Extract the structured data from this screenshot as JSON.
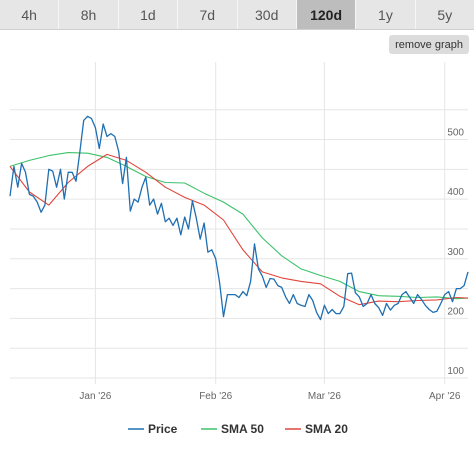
{
  "timeframes": [
    {
      "label": "4h",
      "active": false
    },
    {
      "label": "8h",
      "active": false
    },
    {
      "label": "1d",
      "active": false
    },
    {
      "label": "7d",
      "active": false
    },
    {
      "label": "30d",
      "active": false
    },
    {
      "label": "120d",
      "active": true
    },
    {
      "label": "1y",
      "active": false
    },
    {
      "label": "5y",
      "active": false
    }
  ],
  "remove_graph_label": "remove graph",
  "colors": {
    "price": "#1f6fb2",
    "sma50": "#3cc26a",
    "sma20": "#e0463c",
    "grid": "#e6e6e6"
  },
  "chart_data": {
    "type": "line",
    "y_range": [
      90,
      630
    ],
    "x_range": [
      0,
      118
    ],
    "y_ticks": [
      {
        "value": 100,
        "label": "100"
      },
      {
        "value": 200,
        "label": "200"
      },
      {
        "value": 300,
        "label": "300"
      },
      {
        "value": 400,
        "label": "400"
      },
      {
        "value": 500,
        "label": "500"
      }
    ],
    "x_ticks": [
      {
        "value": 22,
        "label": "Jan '26"
      },
      {
        "value": 53,
        "label": "Feb '26"
      },
      {
        "value": 81,
        "label": "Mar '26"
      },
      {
        "value": 112,
        "label": "Apr '26"
      }
    ],
    "grid": true,
    "legend_position": "bottom",
    "series": [
      {
        "name": "Price",
        "color": "#1f6fb2",
        "x": [
          0,
          1,
          2,
          3,
          4,
          5,
          6,
          7,
          8,
          9,
          10,
          11,
          12,
          13,
          14,
          15,
          16,
          17,
          18,
          19,
          20,
          21,
          22,
          23,
          24,
          25,
          26,
          27,
          28,
          29,
          30,
          31,
          32,
          33,
          34,
          35,
          36,
          37,
          38,
          39,
          40,
          41,
          42,
          43,
          44,
          45,
          46,
          47,
          48,
          49,
          50,
          51,
          52,
          53,
          54,
          55,
          56,
          57,
          58,
          59,
          60,
          61,
          62,
          63,
          64,
          65,
          66,
          67,
          68,
          69,
          70,
          71,
          72,
          73,
          74,
          75,
          76,
          77,
          78,
          79,
          80,
          81,
          82,
          83,
          84,
          85,
          86,
          87,
          88,
          89,
          90,
          91,
          92,
          93,
          94,
          95,
          96,
          97,
          98,
          99,
          100,
          101,
          102,
          103,
          104,
          105,
          106,
          107,
          108,
          109,
          110,
          111,
          112,
          113,
          114,
          115,
          116,
          117,
          118
        ],
        "values": [
          405,
          455,
          420,
          460,
          445,
          408,
          405,
          395,
          378,
          390,
          450,
          447,
          420,
          450,
          400,
          445,
          445,
          430,
          480,
          532,
          539,
          535,
          520,
          485,
          526,
          505,
          510,
          505,
          480,
          426,
          470,
          380,
          400,
          395,
          420,
          437,
          390,
          400,
          375,
          393,
          362,
          368,
          356,
          368,
          340,
          370,
          350,
          397,
          368,
          333,
          360,
          311,
          315,
          300,
          260,
          203,
          240,
          240,
          240,
          235,
          245,
          238,
          262,
          325,
          283,
          271,
          252,
          267,
          266,
          255,
          252,
          236,
          225,
          240,
          225,
          222,
          220,
          240,
          230,
          210,
          198,
          222,
          208,
          215,
          208,
          208,
          220,
          275,
          276,
          243,
          236,
          220,
          225,
          240,
          225,
          218,
          205,
          225,
          214,
          222,
          225,
          240,
          245,
          235,
          225,
          240,
          232,
          222,
          215,
          210,
          212,
          225,
          240,
          245,
          228,
          250,
          250,
          255,
          278
        ]
      },
      {
        "name": "SMA 50",
        "color": "#3cc26a",
        "x": [
          0,
          5,
          10,
          15,
          20,
          25,
          30,
          35,
          40,
          45,
          50,
          55,
          60,
          65,
          70,
          75,
          80,
          85,
          90,
          95,
          100,
          105,
          110,
          115,
          118
        ],
        "values": [
          455,
          465,
          473,
          478,
          477,
          470,
          455,
          438,
          428,
          427,
          410,
          395,
          375,
          335,
          305,
          283,
          272,
          262,
          245,
          238,
          237,
          235,
          236,
          233,
          234
        ]
      },
      {
        "name": "SMA 20",
        "color": "#e0463c",
        "x": [
          0,
          5,
          10,
          15,
          20,
          25,
          30,
          35,
          40,
          45,
          50,
          55,
          60,
          65,
          70,
          75,
          80,
          85,
          90,
          95,
          100,
          105,
          110,
          115,
          118
        ],
        "values": [
          455,
          412,
          390,
          428,
          455,
          475,
          465,
          445,
          420,
          403,
          390,
          365,
          315,
          278,
          268,
          262,
          258,
          237,
          223,
          229,
          228,
          230,
          231,
          235,
          234
        ]
      }
    ]
  }
}
